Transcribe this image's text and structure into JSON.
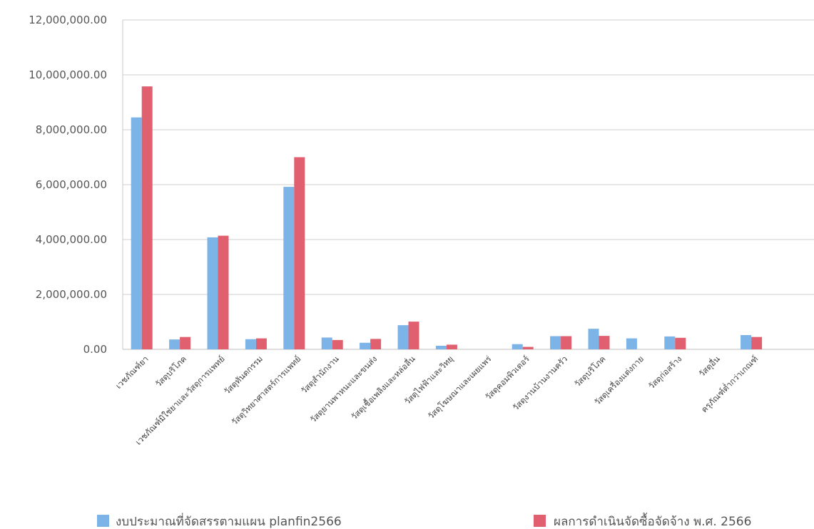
{
  "chart_data": {
    "type": "bar",
    "categories": [
      "เวชภัณฑ์ยา",
      "วัสดุบริโภค",
      "เวชภัณฑ์มิใช่ยาและวัสดุการแพทย์",
      "วัสดุทันตกรรม",
      "วัสดุวิทยาศาสตร์การแพทย์",
      "วัสดุสำนักงาน",
      "วัสดุยานพาหนะและขนส่ง",
      "วัสดุเชื้อเพลิงและหล่อลื่น",
      "วัสดุไฟฟ้าและวิทยุ",
      "วัสดุโฆษณาและเผยแพร่",
      "วัสดุคอมพิวเตอร์",
      "วัสดุงานบ้านงานครัว",
      "วัสดุบริโภค",
      "วัสดุเครื่องแต่งกาย",
      "วัสดุก่อสร้าง",
      "วัสดุอื่น",
      "ครุภัณฑ์ต่ำกว่าเกณฑ์"
    ],
    "series": [
      {
        "name": "งบประมาณที่จัดสรรตามแผน planfin2566",
        "color": "#7cb4e8",
        "values": [
          8450000,
          360000,
          4080000,
          370000,
          5920000,
          430000,
          240000,
          880000,
          130000,
          0,
          190000,
          480000,
          750000,
          400000,
          470000,
          0,
          520000
        ]
      },
      {
        "name": "ผลการดำเนินจัดซื้อจัดจ้าง พ.ศ. 2566",
        "color": "#e06070",
        "values": [
          9580000,
          450000,
          4140000,
          400000,
          7000000,
          340000,
          380000,
          1010000,
          170000,
          0,
          90000,
          480000,
          490000,
          0,
          420000,
          0,
          450000
        ]
      }
    ],
    "yticks": [
      "12,000,000.00",
      "10,000,000.00",
      "8,000,000.00",
      "6,000,000.00",
      "4,000,000.00",
      "2,000,000.00",
      "0.00"
    ],
    "ylim": [
      0,
      12000000
    ],
    "grid": true,
    "legend_position": "bottom"
  }
}
